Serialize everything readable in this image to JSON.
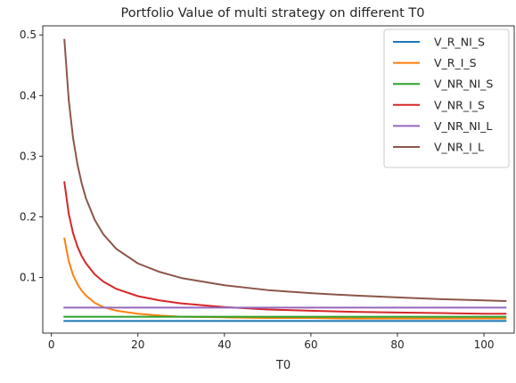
{
  "chart_data": {
    "type": "line",
    "title": "Portfolio Value of multi strategy on different T0",
    "xlabel": "T0",
    "ylabel": "",
    "xlim": [
      -2,
      107
    ],
    "ylim": [
      0.008,
      0.515
    ],
    "xticks": [
      0,
      20,
      40,
      60,
      80,
      100
    ],
    "yticks": [
      0.1,
      0.2,
      0.3,
      0.4,
      0.5
    ],
    "xtick_labels": [
      "0",
      "20",
      "40",
      "60",
      "80",
      "100"
    ],
    "ytick_labels": [
      "0.1",
      "0.2",
      "0.3",
      "0.4",
      "0.5"
    ],
    "grid": false,
    "legend_position": "top-right",
    "x": [
      3,
      4,
      5,
      6,
      7,
      8,
      10,
      12,
      15,
      20,
      25,
      30,
      40,
      50,
      60,
      70,
      80,
      90,
      100,
      105
    ],
    "series": [
      {
        "name": "V_R_NI_S",
        "color": "#1f77b4",
        "values": [
          0.028,
          0.028,
          0.028,
          0.028,
          0.028,
          0.028,
          0.028,
          0.028,
          0.028,
          0.028,
          0.028,
          0.028,
          0.028,
          0.028,
          0.028,
          0.028,
          0.028,
          0.028,
          0.028,
          0.028
        ]
      },
      {
        "name": "V_R_I_S",
        "color": "#ff7f0e",
        "values": [
          0.164,
          0.127,
          0.104,
          0.089,
          0.078,
          0.07,
          0.058,
          0.051,
          0.045,
          0.04,
          0.037,
          0.035,
          0.034,
          0.033,
          0.033,
          0.032,
          0.032,
          0.032,
          0.032,
          0.032
        ]
      },
      {
        "name": "V_NR_NI_S",
        "color": "#2ca02c",
        "values": [
          0.035,
          0.035,
          0.035,
          0.035,
          0.035,
          0.035,
          0.035,
          0.035,
          0.035,
          0.035,
          0.035,
          0.035,
          0.035,
          0.035,
          0.035,
          0.035,
          0.035,
          0.035,
          0.035,
          0.035
        ]
      },
      {
        "name": "V_NR_I_S",
        "color": "#d62728",
        "values": [
          0.257,
          0.205,
          0.173,
          0.151,
          0.135,
          0.123,
          0.105,
          0.093,
          0.081,
          0.069,
          0.062,
          0.057,
          0.051,
          0.047,
          0.045,
          0.043,
          0.042,
          0.041,
          0.04,
          0.04
        ]
      },
      {
        "name": "V_NR_NI_L",
        "color": "#9467bd",
        "values": [
          0.05,
          0.05,
          0.05,
          0.05,
          0.05,
          0.05,
          0.05,
          0.05,
          0.05,
          0.05,
          0.05,
          0.05,
          0.05,
          0.05,
          0.05,
          0.05,
          0.05,
          0.05,
          0.05,
          0.05
        ]
      },
      {
        "name": "V_NR_I_L",
        "color": "#8c564b",
        "values": [
          0.492,
          0.393,
          0.33,
          0.287,
          0.255,
          0.23,
          0.195,
          0.171,
          0.147,
          0.123,
          0.109,
          0.099,
          0.087,
          0.079,
          0.074,
          0.07,
          0.067,
          0.064,
          0.062,
          0.061
        ]
      }
    ]
  }
}
